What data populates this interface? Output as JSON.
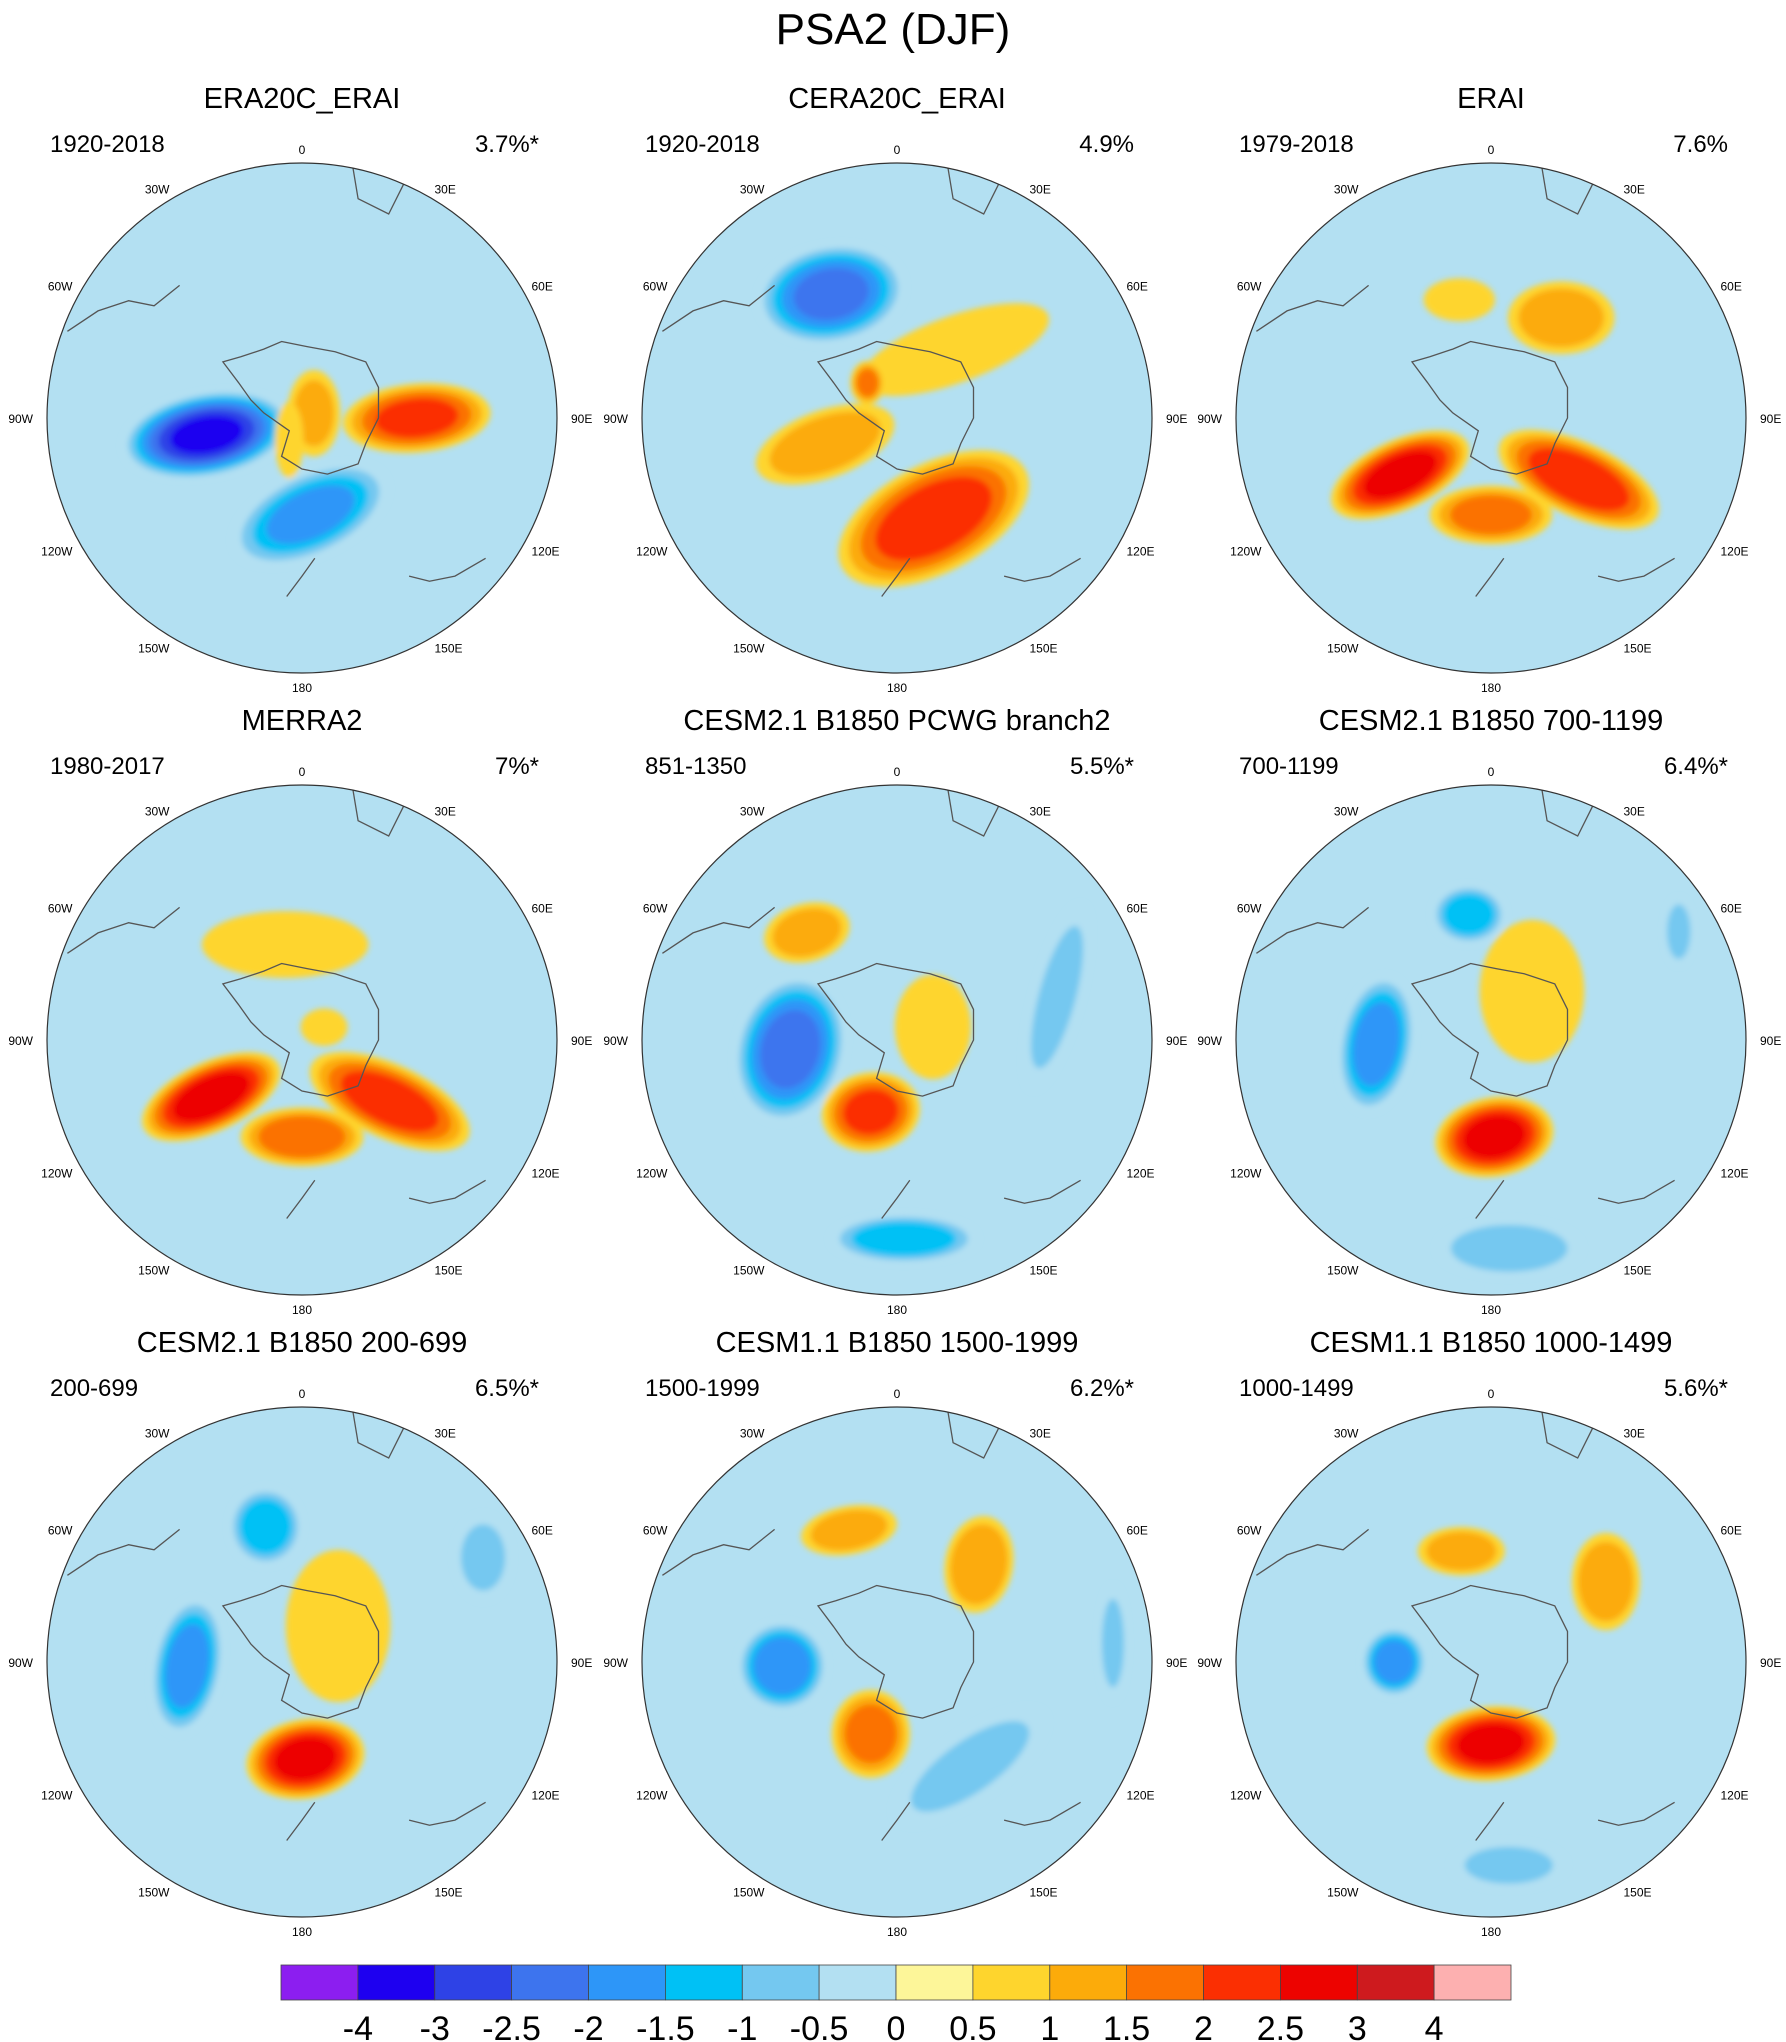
{
  "title": "PSA2 (DJF)",
  "chart_data": {
    "type": "contour-map-panels",
    "projection": "south polar stereographic",
    "longitude_labels": [
      "0",
      "30E",
      "60E",
      "90E",
      "120E",
      "150E",
      "180",
      "150W",
      "120W",
      "90W",
      "60W",
      "30W"
    ],
    "panels": [
      {
        "name": "ERA20C_ERAI",
        "period": "1920-2018",
        "variance": "3.7%*",
        "blobs": [
          {
            "a": 90,
            "r": 0.45,
            "v": 2.0,
            "rx": 0.3,
            "ry": 0.14,
            "rot": -5
          },
          {
            "a": 68,
            "r": 0.05,
            "v": 1.0,
            "rx": 0.11,
            "ry": 0.18,
            "rot": 0
          },
          {
            "a": 260,
            "r": 0.38,
            "v": -3.5,
            "rx": 0.17,
            "ry": 0.34,
            "rot": 80
          },
          {
            "a": 175,
            "r": 0.38,
            "v": -2.0,
            "rx": 0.34,
            "ry": 0.17,
            "rot": -25
          },
          {
            "a": 210,
            "r": 0.1,
            "v": 0.8,
            "rx": 0.06,
            "ry": 0.16,
            "rot": 0
          }
        ]
      },
      {
        "name": "CERA20C_ERAI",
        "period": "1920-2018",
        "variance": "4.9%",
        "blobs": [
          {
            "a": 332,
            "r": 0.55,
            "v": -2.5,
            "rx": 0.3,
            "ry": 0.2,
            "rot": -10
          },
          {
            "a": 40,
            "r": 0.35,
            "v": 0.8,
            "rx": 0.14,
            "ry": 0.42,
            "rot": 70
          },
          {
            "a": 250,
            "r": 0.3,
            "v": 1.2,
            "rx": 0.14,
            "ry": 0.3,
            "rot": 70
          },
          {
            "a": 320,
            "r": 0.18,
            "v": 1.5,
            "rx": 0.07,
            "ry": 0.09,
            "rot": 0
          },
          {
            "a": 160,
            "r": 0.42,
            "v": 2.2,
            "rx": 0.42,
            "ry": 0.22,
            "rot": -28
          }
        ]
      },
      {
        "name": "ERAI",
        "period": "1979-2018",
        "variance": "7.6%",
        "blobs": [
          {
            "a": 35,
            "r": 0.48,
            "v": 1.2,
            "rx": 0.22,
            "ry": 0.15,
            "rot": 0
          },
          {
            "a": 345,
            "r": 0.48,
            "v": 0.8,
            "rx": 0.15,
            "ry": 0.09,
            "rot": 0
          },
          {
            "a": 238,
            "r": 0.42,
            "v": 2.6,
            "rx": 0.3,
            "ry": 0.14,
            "rot": -25
          },
          {
            "a": 125,
            "r": 0.42,
            "v": 2.3,
            "rx": 0.35,
            "ry": 0.15,
            "rot": 25
          },
          {
            "a": 180,
            "r": 0.38,
            "v": 1.6,
            "rx": 0.25,
            "ry": 0.12,
            "rot": 0
          }
        ]
      },
      {
        "name": "MERRA2",
        "period": "1980-2017",
        "variance": "7%*",
        "blobs": [
          {
            "a": 350,
            "r": 0.38,
            "v": 0.8,
            "rx": 0.35,
            "ry": 0.14,
            "rot": 0
          },
          {
            "a": 238,
            "r": 0.42,
            "v": 2.7,
            "rx": 0.3,
            "ry": 0.14,
            "rot": -25
          },
          {
            "a": 125,
            "r": 0.42,
            "v": 2.2,
            "rx": 0.35,
            "ry": 0.15,
            "rot": 25
          },
          {
            "a": 180,
            "r": 0.38,
            "v": 1.8,
            "rx": 0.25,
            "ry": 0.12,
            "rot": 0
          },
          {
            "a": 60,
            "r": 0.1,
            "v": 0.6,
            "rx": 0.1,
            "ry": 0.08,
            "rot": 0
          }
        ]
      },
      {
        "name": "CESM2.1 B1850 PCWG branch2",
        "period": "851-1350",
        "variance": "5.5%*",
        "blobs": [
          {
            "a": 320,
            "r": 0.55,
            "v": 1.2,
            "rx": 0.18,
            "ry": 0.12,
            "rot": -15
          },
          {
            "a": 265,
            "r": 0.42,
            "v": -2.6,
            "rx": 0.22,
            "ry": 0.3,
            "rot": 15
          },
          {
            "a": 200,
            "r": 0.3,
            "v": 2.0,
            "rx": 0.2,
            "ry": 0.16,
            "rot": -10
          },
          {
            "a": 178,
            "r": 0.78,
            "v": -1.8,
            "rx": 0.3,
            "ry": 0.1,
            "rot": 0
          },
          {
            "a": 75,
            "r": 0.65,
            "v": -1.0,
            "rx": 0.1,
            "ry": 0.4,
            "rot": 15
          },
          {
            "a": 70,
            "r": 0.15,
            "v": 0.8,
            "rx": 0.16,
            "ry": 0.22,
            "rot": 0
          }
        ]
      },
      {
        "name": "CESM2.1 B1850 700-1199",
        "period": "700-1199",
        "variance": "6.4%*",
        "blobs": [
          {
            "a": 350,
            "r": 0.5,
            "v": -1.8,
            "rx": 0.15,
            "ry": 0.12,
            "rot": 0
          },
          {
            "a": 268,
            "r": 0.45,
            "v": -2.2,
            "rx": 0.15,
            "ry": 0.28,
            "rot": 10
          },
          {
            "a": 178,
            "r": 0.38,
            "v": 2.6,
            "rx": 0.24,
            "ry": 0.16,
            "rot": -10
          },
          {
            "a": 40,
            "r": 0.25,
            "v": 0.8,
            "rx": 0.22,
            "ry": 0.3,
            "rot": 0
          },
          {
            "a": 175,
            "r": 0.82,
            "v": -1.2,
            "rx": 0.3,
            "ry": 0.12,
            "rot": 0
          },
          {
            "a": 60,
            "r": 0.85,
            "v": -1.2,
            "rx": 0.06,
            "ry": 0.14,
            "rot": 0
          }
        ]
      },
      {
        "name": "CESM2.1 B1850 200-699",
        "period": "200-699",
        "variance": "6.5%*",
        "blobs": [
          {
            "a": 345,
            "r": 0.55,
            "v": -1.8,
            "rx": 0.15,
            "ry": 0.16,
            "rot": 0
          },
          {
            "a": 268,
            "r": 0.45,
            "v": -2.2,
            "rx": 0.14,
            "ry": 0.28,
            "rot": 10
          },
          {
            "a": 178,
            "r": 0.38,
            "v": 2.6,
            "rx": 0.24,
            "ry": 0.16,
            "rot": -10
          },
          {
            "a": 45,
            "r": 0.2,
            "v": 0.8,
            "rx": 0.22,
            "ry": 0.32,
            "rot": 0
          },
          {
            "a": 60,
            "r": 0.82,
            "v": -1.0,
            "rx": 0.12,
            "ry": 0.18,
            "rot": 0
          }
        ]
      },
      {
        "name": "CESM1.1 B1850 1500-1999",
        "period": "1500-1999",
        "variance": "6.2%*",
        "blobs": [
          {
            "a": 340,
            "r": 0.55,
            "v": 1.2,
            "rx": 0.2,
            "ry": 0.1,
            "rot": -10
          },
          {
            "a": 40,
            "r": 0.5,
            "v": 1.4,
            "rx": 0.14,
            "ry": 0.2,
            "rot": 10
          },
          {
            "a": 268,
            "r": 0.45,
            "v": -2.4,
            "rx": 0.18,
            "ry": 0.18,
            "rot": 0
          },
          {
            "a": 200,
            "r": 0.3,
            "v": 1.6,
            "rx": 0.16,
            "ry": 0.18,
            "rot": 0
          },
          {
            "a": 145,
            "r": 0.5,
            "v": -1.0,
            "rx": 0.38,
            "ry": 0.14,
            "rot": -35
          },
          {
            "a": 85,
            "r": 0.85,
            "v": -1.0,
            "rx": 0.06,
            "ry": 0.24,
            "rot": 0
          }
        ]
      },
      {
        "name": "CESM1.1 B1850 1000-1499",
        "period": "1000-1499",
        "variance": "5.6%*",
        "blobs": [
          {
            "a": 345,
            "r": 0.45,
            "v": 1.2,
            "rx": 0.18,
            "ry": 0.1,
            "rot": 0
          },
          {
            "a": 55,
            "r": 0.55,
            "v": 1.3,
            "rx": 0.14,
            "ry": 0.2,
            "rot": 0
          },
          {
            "a": 270,
            "r": 0.38,
            "v": -2.3,
            "rx": 0.13,
            "ry": 0.14,
            "rot": 0
          },
          {
            "a": 180,
            "r": 0.32,
            "v": 2.6,
            "rx": 0.26,
            "ry": 0.15,
            "rot": -5
          },
          {
            "a": 175,
            "r": 0.8,
            "v": -1.0,
            "rx": 0.24,
            "ry": 0.1,
            "rot": 0
          }
        ]
      }
    ],
    "colorbar": {
      "levels": [
        "-4",
        "-3",
        "-2.5",
        "-2",
        "-1.5",
        "-1",
        "-0.5",
        "0",
        "0.5",
        "1",
        "1.5",
        "2",
        "2.5",
        "3",
        "4"
      ],
      "colors": [
        "#8c1ef0",
        "#1e00f0",
        "#2e42e6",
        "#3d74ee",
        "#2d96f8",
        "#00c1f5",
        "#74c8f0",
        "#b3e0f2",
        "#fdf699",
        "#fed52d",
        "#fcab0a",
        "#fb7202",
        "#fb2f02",
        "#ed0300",
        "#ce1a1e",
        "#fdb0b0"
      ]
    },
    "map_colors": {
      "background": "#b3e0f2",
      "coast": "#555555",
      "frame": "#333333"
    }
  }
}
